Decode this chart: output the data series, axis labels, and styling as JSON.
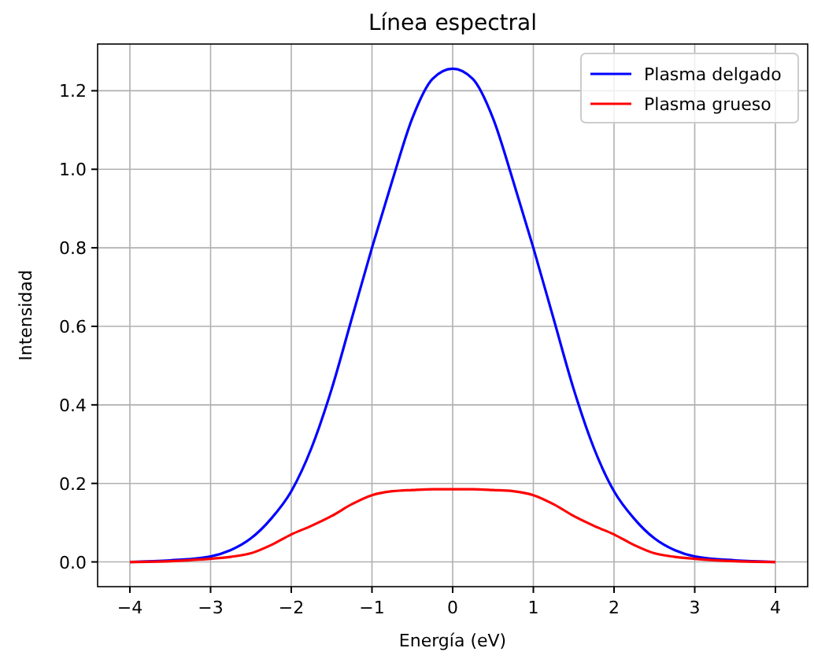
{
  "chart_data": {
    "type": "line",
    "title": "Línea espectral",
    "xlabel": "Energía (eV)",
    "ylabel": "Intensidad",
    "x": [
      -4,
      -3.5,
      -3,
      -2.75,
      -2.5,
      -2.25,
      -2,
      -1.75,
      -1.5,
      -1.25,
      -1,
      -0.75,
      -0.5,
      -0.25,
      0,
      0.25,
      0.5,
      0.75,
      1,
      1.25,
      1.5,
      1.75,
      2,
      2.25,
      2.5,
      2.75,
      3,
      3.5,
      4
    ],
    "series": [
      {
        "name": "Plasma delgado",
        "color": "#0000ff",
        "values": [
          0,
          0.004,
          0.014,
          0.03,
          0.06,
          0.11,
          0.18,
          0.29,
          0.44,
          0.62,
          0.8,
          0.97,
          1.13,
          1.23,
          1.256,
          1.23,
          1.13,
          0.97,
          0.8,
          0.62,
          0.44,
          0.29,
          0.18,
          0.11,
          0.06,
          0.03,
          0.014,
          0.004,
          0
        ]
      },
      {
        "name": "Plasma grueso",
        "color": "#ff0000",
        "values": [
          0,
          0.002,
          0.008,
          0.013,
          0.022,
          0.043,
          0.07,
          0.092,
          0.117,
          0.147,
          0.17,
          0.18,
          0.183,
          0.185,
          0.185,
          0.185,
          0.183,
          0.18,
          0.17,
          0.147,
          0.117,
          0.092,
          0.07,
          0.043,
          0.022,
          0.013,
          0.008,
          0.002,
          0
        ]
      }
    ],
    "xlim": [
      -4.4,
      4.4
    ],
    "xticks": [
      {
        "value": -4,
        "label": "−4"
      },
      {
        "value": -3,
        "label": "−3"
      },
      {
        "value": -2,
        "label": "−2"
      },
      {
        "value": -1,
        "label": "−1"
      },
      0,
      1,
      2,
      3,
      4
    ],
    "ylim": [
      -0.063,
      1.319
    ],
    "yticks": [
      {
        "value": 0,
        "label": "0.0"
      },
      {
        "value": 0.2,
        "label": "0.2"
      },
      {
        "value": 0.4,
        "label": "0.4"
      },
      {
        "value": 0.6,
        "label": "0.6"
      },
      {
        "value": 0.8,
        "label": "0.8"
      },
      {
        "value": 1,
        "label": "1.0"
      },
      {
        "value": 1.2,
        "label": "1.2"
      }
    ],
    "grid": true,
    "legend": "top right",
    "line_style": "solid",
    "marker": "none"
  }
}
